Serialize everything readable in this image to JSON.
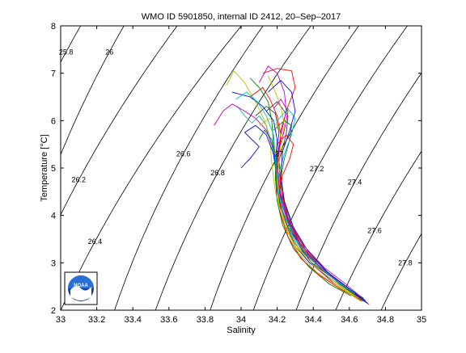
{
  "chart_data": {
    "type": "line",
    "title": "WMO ID 5901850, internal ID 2412, 20–Sep–2017",
    "xlabel": "Salinity",
    "ylabel": "Temperature [°C]",
    "xlim": [
      33,
      35
    ],
    "ylim": [
      2,
      8
    ],
    "xticks": [
      "33",
      "33.2",
      "33.4",
      "33.6",
      "33.8",
      "34",
      "34.2",
      "34.4",
      "34.6",
      "34.8",
      "35"
    ],
    "yticks": [
      "2",
      "3",
      "4",
      "5",
      "6",
      "7",
      "8"
    ],
    "grid": false,
    "legend": "none",
    "isopycnal_labels": [
      {
        "text": "25.8",
        "s": 33.03,
        "t": 7.45
      },
      {
        "text": "26",
        "s": 33.27,
        "t": 7.45
      },
      {
        "text": "26.2",
        "s": 33.1,
        "t": 4.75
      },
      {
        "text": "26.4",
        "s": 33.19,
        "t": 3.45
      },
      {
        "text": "26.6",
        "s": 33.68,
        "t": 5.3
      },
      {
        "text": "26.8",
        "s": 33.87,
        "t": 4.9
      },
      {
        "text": "27",
        "s": 34.21,
        "t": 5.3
      },
      {
        "text": "27.2",
        "s": 34.42,
        "t": 4.98
      },
      {
        "text": "27.4",
        "s": 34.63,
        "t": 4.7
      },
      {
        "text": "27.6",
        "s": 34.74,
        "t": 3.68
      },
      {
        "text": "27.8",
        "s": 34.91,
        "t": 3.0
      }
    ],
    "series": [
      {
        "color": "#0000ff",
        "s": [
          33.95,
          34.05,
          34.12,
          34.18,
          34.2,
          34.19,
          34.2,
          34.24,
          34.3,
          34.38,
          34.5,
          34.62,
          34.7
        ],
        "t": [
          6.6,
          6.5,
          6.3,
          6.0,
          5.6,
          5.1,
          4.5,
          3.9,
          3.35,
          3.0,
          2.65,
          2.35,
          2.15
        ]
      },
      {
        "color": "#008000",
        "s": [
          34.05,
          34.1,
          34.15,
          34.17,
          34.18,
          34.2,
          34.23,
          34.28,
          34.36,
          34.48,
          34.6,
          34.69
        ],
        "t": [
          6.9,
          6.7,
          6.4,
          6.0,
          5.5,
          5.0,
          4.4,
          3.8,
          3.25,
          2.8,
          2.45,
          2.2
        ]
      },
      {
        "color": "#ff0000",
        "s": [
          34.12,
          34.2,
          34.28,
          34.3,
          34.26,
          34.22,
          34.21,
          34.22,
          34.26,
          34.33,
          34.44,
          34.57,
          34.71
        ],
        "t": [
          7.0,
          7.1,
          7.05,
          6.7,
          6.3,
          5.8,
          5.2,
          4.6,
          3.95,
          3.4,
          2.9,
          2.5,
          2.12
        ]
      },
      {
        "color": "#00bfbf",
        "s": [
          33.98,
          34.02,
          34.06,
          34.1,
          34.14,
          34.17,
          34.19,
          34.21,
          34.25,
          34.32,
          34.45,
          34.58,
          34.68
        ],
        "t": [
          6.3,
          6.1,
          5.95,
          6.1,
          5.9,
          5.5,
          5.0,
          4.4,
          3.8,
          3.3,
          2.85,
          2.45,
          2.18
        ]
      },
      {
        "color": "#bf00bf",
        "s": [
          34.1,
          34.15,
          34.2,
          34.24,
          34.25,
          34.22,
          34.2,
          34.21,
          34.25,
          34.31,
          34.4,
          34.52,
          34.66
        ],
        "t": [
          6.8,
          7.15,
          7.0,
          6.6,
          6.2,
          5.7,
          5.2,
          4.6,
          4.0,
          3.45,
          2.95,
          2.55,
          2.2
        ]
      },
      {
        "color": "#bfbf00",
        "s": [
          33.92,
          33.96,
          34.02,
          34.08,
          34.13,
          34.16,
          34.17,
          34.19,
          34.23,
          34.3,
          34.42,
          34.55,
          34.67
        ],
        "t": [
          6.75,
          7.05,
          6.8,
          6.4,
          6.0,
          5.6,
          5.1,
          4.5,
          3.9,
          3.35,
          2.9,
          2.5,
          2.18
        ]
      },
      {
        "color": "#404040",
        "s": [
          34.14,
          34.2,
          34.26,
          34.25,
          34.22,
          34.2,
          34.21,
          34.24,
          34.3,
          34.39,
          34.5,
          34.62
        ],
        "t": [
          6.2,
          6.4,
          6.1,
          5.7,
          5.3,
          4.9,
          4.4,
          3.9,
          3.4,
          3.0,
          2.7,
          2.35
        ]
      },
      {
        "color": "#0000ff",
        "s": [
          34.0,
          34.05,
          34.1,
          34.06,
          34.02,
          34.08,
          34.14,
          34.18,
          34.2,
          34.23,
          34.28,
          34.37,
          34.49,
          34.61,
          34.7
        ],
        "t": [
          5.0,
          5.2,
          5.45,
          5.6,
          5.75,
          5.9,
          5.7,
          5.3,
          4.8,
          4.2,
          3.65,
          3.15,
          2.75,
          2.4,
          2.15
        ]
      },
      {
        "color": "#008000",
        "s": [
          34.18,
          34.24,
          34.28,
          34.27,
          34.24,
          34.22,
          34.23,
          34.27,
          34.34,
          34.44,
          34.56,
          34.68
        ],
        "t": [
          5.8,
          6.0,
          5.9,
          5.6,
          5.2,
          4.8,
          4.3,
          3.8,
          3.3,
          2.9,
          2.55,
          2.25
        ]
      },
      {
        "color": "#ff0000",
        "s": [
          34.05,
          34.12,
          34.16,
          34.2,
          34.22,
          34.21,
          34.22,
          34.25,
          34.32,
          34.41,
          34.53,
          34.64
        ],
        "t": [
          6.5,
          6.7,
          6.45,
          6.1,
          5.7,
          5.2,
          4.6,
          4.0,
          3.45,
          3.0,
          2.65,
          2.3
        ]
      },
      {
        "color": "#00bfbf",
        "s": [
          34.2,
          34.26,
          34.3,
          34.28,
          34.24,
          34.21,
          34.22,
          34.26,
          34.33,
          34.42,
          34.54,
          34.66
        ],
        "t": [
          6.0,
          6.25,
          6.05,
          5.7,
          5.3,
          4.9,
          4.35,
          3.85,
          3.35,
          2.95,
          2.6,
          2.25
        ]
      },
      {
        "color": "#bf00bf",
        "s": [
          33.85,
          33.9,
          33.95,
          34.02,
          34.08,
          34.14,
          34.18,
          34.2,
          34.22,
          34.27,
          34.35,
          34.47,
          34.6,
          34.7
        ],
        "t": [
          5.9,
          6.2,
          6.35,
          6.2,
          6.05,
          5.8,
          5.4,
          4.9,
          4.3,
          3.75,
          3.25,
          2.8,
          2.45,
          2.15
        ]
      },
      {
        "color": "#bfbf00",
        "s": [
          34.15,
          34.19,
          34.22,
          34.24,
          34.22,
          34.2,
          34.21,
          34.24,
          34.3,
          34.4,
          34.52,
          34.65
        ],
        "t": [
          6.95,
          6.6,
          6.3,
          5.9,
          5.5,
          5.0,
          4.45,
          3.9,
          3.4,
          2.95,
          2.6,
          2.25
        ]
      },
      {
        "color": "#404040",
        "s": [
          34.08,
          34.14,
          34.19,
          34.21,
          34.2,
          34.19,
          34.21,
          34.26,
          34.34,
          34.45,
          34.57,
          34.68
        ],
        "t": [
          6.1,
          6.3,
          6.15,
          5.75,
          5.3,
          4.85,
          4.3,
          3.75,
          3.25,
          2.85,
          2.5,
          2.2
        ]
      },
      {
        "color": "#0000ff",
        "s": [
          34.15,
          34.22,
          34.28,
          34.3,
          34.27,
          34.23,
          34.22,
          34.24,
          34.29,
          34.37,
          34.48,
          34.6,
          34.7
        ],
        "t": [
          6.6,
          6.85,
          6.6,
          6.2,
          5.8,
          5.35,
          4.85,
          4.3,
          3.75,
          3.25,
          2.8,
          2.45,
          2.15
        ]
      },
      {
        "color": "#008000",
        "s": [
          34.1,
          34.13,
          34.17,
          34.19,
          34.19,
          34.2,
          34.23,
          34.29,
          34.38,
          34.49,
          34.61
        ],
        "t": [
          5.6,
          5.8,
          5.6,
          5.2,
          4.8,
          4.3,
          3.8,
          3.3,
          2.9,
          2.55,
          2.3
        ]
      },
      {
        "color": "#ff0000",
        "s": [
          34.2,
          34.25,
          34.29,
          34.27,
          34.23,
          34.21,
          34.22,
          34.26,
          34.33,
          34.43,
          34.55,
          34.67
        ],
        "t": [
          5.5,
          5.7,
          5.5,
          5.2,
          4.85,
          4.45,
          4.0,
          3.55,
          3.1,
          2.75,
          2.45,
          2.2
        ]
      },
      {
        "color": "#00bfbf",
        "s": [
          33.97,
          34.03,
          34.09,
          34.14,
          34.18,
          34.19,
          34.2,
          34.23,
          34.29,
          34.38,
          34.5,
          34.63
        ],
        "t": [
          6.45,
          6.6,
          6.4,
          6.1,
          5.7,
          5.2,
          4.65,
          4.1,
          3.55,
          3.1,
          2.7,
          2.35
        ]
      },
      {
        "color": "#bf00bf",
        "s": [
          34.18,
          34.22,
          34.26,
          34.24,
          34.21,
          34.2,
          34.22,
          34.27,
          34.35,
          34.46,
          34.58,
          34.69
        ],
        "t": [
          6.25,
          6.45,
          6.2,
          5.8,
          5.4,
          4.95,
          4.4,
          3.85,
          3.35,
          2.9,
          2.55,
          2.2
        ]
      },
      {
        "color": "#bfbf00",
        "s": [
          34.1,
          34.16,
          34.21,
          34.23,
          34.21,
          34.2,
          34.21,
          34.25,
          34.32,
          34.42,
          34.54,
          34.66
        ],
        "t": [
          5.9,
          6.05,
          5.85,
          5.5,
          5.1,
          4.7,
          4.2,
          3.7,
          3.2,
          2.8,
          2.5,
          2.2
        ]
      }
    ]
  }
}
